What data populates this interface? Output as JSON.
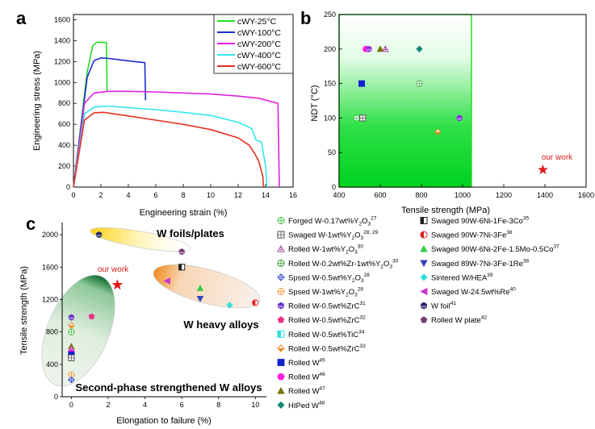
{
  "chart_data": [
    {
      "panel": "a",
      "type": "line",
      "xlabel": "Engineering strain (%)",
      "ylabel": "Engineering stress (MPa)",
      "xlim": [
        0,
        16
      ],
      "ylim": [
        0,
        1650
      ],
      "xticks": [
        "0",
        "2",
        "4",
        "6",
        "8",
        "10",
        "12",
        "14",
        "16"
      ],
      "yticks": [
        "0",
        "200",
        "400",
        "600",
        "800",
        "1000",
        "1200",
        "1400",
        "1600"
      ],
      "legend_position": "top-right",
      "series": [
        {
          "name": "cWY-25°C",
          "color": "#22dd22",
          "x": [
            0,
            1.0,
            1.4,
            1.7,
            2.2,
            2.4,
            2.45
          ],
          "y": [
            0,
            1100,
            1350,
            1385,
            1385,
            1380,
            910
          ]
        },
        {
          "name": "cWY-100°C",
          "color": "#1a2ccc",
          "x": [
            0,
            1.0,
            1.5,
            2.0,
            2.6,
            3.5,
            4.5,
            5.2,
            5.25
          ],
          "y": [
            0,
            1050,
            1210,
            1235,
            1230,
            1215,
            1200,
            1190,
            830
          ]
        },
        {
          "name": "cWY-200°C",
          "color": "#e020e0",
          "x": [
            0,
            0.8,
            1.5,
            2.5,
            4,
            6,
            8,
            10,
            12,
            13.5,
            14.9,
            15.0
          ],
          "y": [
            0,
            800,
            900,
            915,
            915,
            910,
            900,
            890,
            870,
            850,
            800,
            0
          ]
        },
        {
          "name": "cWY-400°C",
          "color": "#33e6f0",
          "x": [
            0,
            0.8,
            1.5,
            2.5,
            4,
            6,
            8,
            10,
            12,
            13.0,
            13.3,
            13.7,
            14.0,
            14.1
          ],
          "y": [
            0,
            700,
            765,
            775,
            760,
            740,
            715,
            685,
            620,
            560,
            450,
            430,
            200,
            0
          ]
        },
        {
          "name": "cWY-600°C",
          "color": "#e63022",
          "x": [
            0,
            0.8,
            1.5,
            2.2,
            4,
            6,
            8,
            10,
            12,
            12.8,
            13.2,
            13.5,
            13.8,
            13.85
          ],
          "y": [
            0,
            640,
            710,
            715,
            680,
            640,
            600,
            550,
            470,
            400,
            320,
            250,
            100,
            0
          ]
        }
      ]
    },
    {
      "panel": "b",
      "type": "scatter",
      "xlabel": "Tensile strength (MPa)",
      "ylabel": "NDT (°C)",
      "xlim": [
        400,
        1600
      ],
      "ylim": [
        0,
        250
      ],
      "xticks": [
        "400",
        "600",
        "800",
        "1000",
        "1200",
        "1400",
        "1600"
      ],
      "yticks": [
        "0",
        "50",
        "100",
        "150",
        "200",
        "250"
      ],
      "annotation": "our work",
      "points": [
        {
          "x": 485,
          "y": 100,
          "marker": "circle-plus",
          "color": "#3ccc4a"
        },
        {
          "x": 515,
          "y": 100,
          "marker": "square-plus",
          "color": "#555555"
        },
        {
          "x": 530,
          "y": 200,
          "marker": "circle",
          "color": "#ff22dd"
        },
        {
          "x": 545,
          "y": 200,
          "marker": "hex",
          "color": "#8a2be2"
        },
        {
          "x": 600,
          "y": 200,
          "marker": "triangle",
          "color": "#7a7000"
        },
        {
          "x": 625,
          "y": 200,
          "marker": "triangle-open",
          "color": "#a040a0"
        },
        {
          "x": 510,
          "y": 150,
          "marker": "square",
          "color": "#1020d0"
        },
        {
          "x": 790,
          "y": 200,
          "marker": "diamond",
          "color": "#118878"
        },
        {
          "x": 790,
          "y": 150,
          "marker": "circle-plus",
          "color": "#4caf50"
        },
        {
          "x": 880,
          "y": 80,
          "marker": "diamond-half",
          "color": "#d89020"
        },
        {
          "x": 985,
          "y": 100,
          "marker": "hex",
          "color": "#8a2be2"
        },
        {
          "x": 1390,
          "y": 25,
          "marker": "star",
          "color": "#e01b1b"
        }
      ]
    },
    {
      "panel": "c",
      "type": "scatter",
      "xlabel": "Elongation to failure (%)",
      "ylabel": "Tensile strength (MPa)",
      "xlim": [
        -0.5,
        10.6
      ],
      "ylim": [
        0,
        2150
      ],
      "xticks": [
        "0",
        "2",
        "4",
        "6",
        "8",
        "10"
      ],
      "yticks": [
        "0",
        "400",
        "800",
        "1200",
        "1600",
        "2000"
      ],
      "region_labels": [
        "W foils/plates",
        "W heavy alloys",
        "Second-phase strengthened W alloys"
      ],
      "annotation": "our work",
      "points": [
        {
          "x": 1.5,
          "y": 2000,
          "marker": "hex",
          "color": "#222266"
        },
        {
          "x": 6.0,
          "y": 1790,
          "marker": "hex",
          "color": "#7a3a7a"
        },
        {
          "x": 6.0,
          "y": 1600,
          "marker": "square-half",
          "color": "#222222"
        },
        {
          "x": 2.5,
          "y": 1380,
          "marker": "star",
          "color": "#e01b1b"
        },
        {
          "x": 5.2,
          "y": 1430,
          "marker": "triangle-left",
          "color": "#cc33cc"
        },
        {
          "x": 7.0,
          "y": 1340,
          "marker": "triangle",
          "color": "#33cc44"
        },
        {
          "x": 7.0,
          "y": 1210,
          "marker": "triangle-down",
          "color": "#3344bb"
        },
        {
          "x": 8.6,
          "y": 1130,
          "marker": "diamond",
          "color": "#33dddd"
        },
        {
          "x": 10.0,
          "y": 1160,
          "marker": "circle-half",
          "color": "#dd2222"
        },
        {
          "x": 1.1,
          "y": 990,
          "marker": "pentagon",
          "color": "#ee3388"
        },
        {
          "x": 0,
          "y": 980,
          "marker": "hex",
          "color": "#6633cc"
        },
        {
          "x": 0,
          "y": 880,
          "marker": "diamond-half",
          "color": "#ee8822"
        },
        {
          "x": 0,
          "y": 800,
          "marker": "circle-plus",
          "color": "#44bb44"
        },
        {
          "x": 0,
          "y": 620,
          "marker": "triangle",
          "color": "#7a7000"
        },
        {
          "x": 0,
          "y": 590,
          "marker": "triangle-open",
          "color": "#aa55aa"
        },
        {
          "x": 0,
          "y": 550,
          "marker": "circle",
          "color": "#ff22dd"
        },
        {
          "x": 0,
          "y": 520,
          "marker": "square",
          "color": "#1020d0"
        },
        {
          "x": 0,
          "y": 480,
          "marker": "square-plus",
          "color": "#555555"
        },
        {
          "x": 0,
          "y": 270,
          "marker": "circle-plus",
          "color": "#ee9933"
        },
        {
          "x": 0,
          "y": 210,
          "marker": "diamond-plus",
          "color": "#3344cc"
        }
      ],
      "legend": [
        {
          "label": "Forged W-0.17wt%Y",
          "sub": "2",
          "mid": "O",
          "sub2": "3",
          "sup": "27",
          "marker": "circle-plus",
          "color": "#44bb44"
        },
        {
          "label": "Swaged W-1wt%Y",
          "sub": "2",
          "mid": "O",
          "sub2": "3",
          "sup": "28, 29",
          "marker": "square-plus",
          "color": "#555555"
        },
        {
          "label": "Rolled W-1wt%Y",
          "sub": "2",
          "mid": "O",
          "sub2": "3",
          "sup": "30",
          "marker": "triangle-open",
          "color": "#aa55aa"
        },
        {
          "label": "Rolled W-0.2wt%Zr-1wt%Y",
          "sub": "2",
          "mid": "O",
          "sub2": "3",
          "sup": "30",
          "marker": "circle-plus",
          "color": "#339933"
        },
        {
          "label": "Spsed W-0.5wt%Y",
          "sub": "2",
          "mid": "O",
          "sub2": "3",
          "sup": "28",
          "marker": "diamond-plus",
          "color": "#3344cc"
        },
        {
          "label": "Spsed W-1wt%Y",
          "sub": "2",
          "mid": "O",
          "sub2": "3",
          "sup": "28",
          "marker": "circle-plus",
          "color": "#ee9933"
        },
        {
          "label": "Rolled W-0.5wt%ZrC",
          "sup": "31",
          "marker": "hex",
          "color": "#6633cc"
        },
        {
          "label": "Rolled W-0.5wt%ZrC",
          "sup": "32",
          "marker": "pentagon",
          "color": "#ee3388"
        },
        {
          "label": "Rolled W-0.5wt%TiC",
          "sup": "34",
          "marker": "square-half",
          "color": "#33dddd"
        },
        {
          "label": "Rolled W-0.5wt%ZrC",
          "sup": "33",
          "marker": "diamond-half",
          "color": "#ee8822"
        },
        {
          "label": "Rolled W",
          "sup": "45",
          "marker": "square",
          "color": "#1020d0"
        },
        {
          "label": "Rolled W",
          "sup": "46",
          "marker": "circle",
          "color": "#ff22dd"
        },
        {
          "label": "Rolled W",
          "sup": "47",
          "marker": "triangle",
          "color": "#7a7000"
        },
        {
          "label": "HIPed W",
          "sup": "48",
          "marker": "diamond",
          "color": "#118878"
        },
        {
          "label": "Swaged 90W-6Ni-1Fe-3Co",
          "sup": "35",
          "marker": "square-half",
          "color": "#222222"
        },
        {
          "label": "Swaged 90W-7Ni-3Fe",
          "sup": "36",
          "marker": "circle-half",
          "color": "#dd2222"
        },
        {
          "label": "Swaged 90W-6Ni-2Fe-1.5Mo-0.5Co",
          "sup": "37",
          "marker": "triangle",
          "color": "#33cc44"
        },
        {
          "label": "Swaged 89W-7Ni-3Fe-1Re",
          "sup": "38",
          "marker": "triangle-down",
          "color": "#3344bb"
        },
        {
          "label": "Sintered W/HEA",
          "sup": "39",
          "marker": "diamond",
          "color": "#33dddd"
        },
        {
          "label": "Swaged W-24.5wt%Re",
          "sup": "40",
          "marker": "triangle-left",
          "color": "#cc33cc"
        },
        {
          "label": "W foil",
          "sup": "41",
          "marker": "hex",
          "color": "#222266"
        },
        {
          "label": "Rolled W plate",
          "sup": "42",
          "marker": "pentagon",
          "color": "#7a3a7a"
        }
      ]
    }
  ],
  "panel_labels": [
    "a",
    "b",
    "c"
  ]
}
